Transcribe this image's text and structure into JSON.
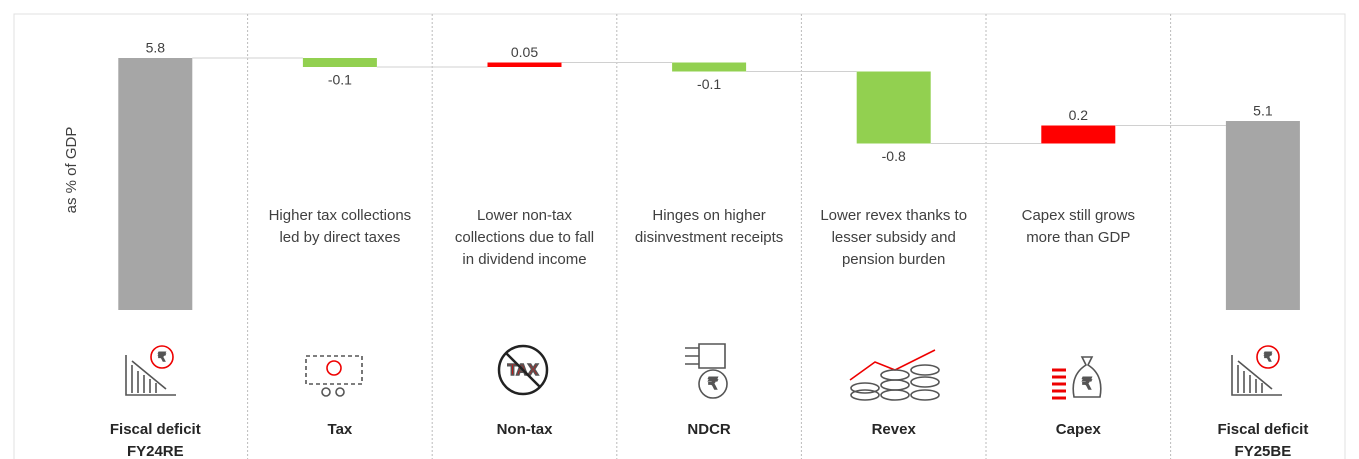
{
  "chart_data": {
    "type": "waterfall",
    "y_label": "as % of GDP",
    "categories": [
      "Fiscal deficit FY24RE",
      "Tax",
      "Non-tax",
      "NDCR",
      "Revex",
      "Capex",
      "Fiscal deficit FY25BE"
    ],
    "values": [
      5.8,
      -0.1,
      0.05,
      -0.1,
      -0.8,
      0.2,
      5.1
    ],
    "measure": [
      "absolute",
      "relative",
      "relative",
      "relative",
      "relative",
      "relative",
      "total"
    ],
    "colors": [
      "#a6a6a6",
      "#92d050",
      "#ff0000",
      "#92d050",
      "#92d050",
      "#ff0000",
      "#a6a6a6"
    ],
    "annotations": [
      null,
      "Higher tax collections led by direct taxes",
      "Lower non-tax collections due to fall in dividend income",
      "Hinges on higher disinvestment receipts",
      "Lower revex thanks to lesser subsidy and pension burden",
      "Capex still grows more than GDP",
      null
    ],
    "ylim": [
      3,
      6
    ]
  }
}
